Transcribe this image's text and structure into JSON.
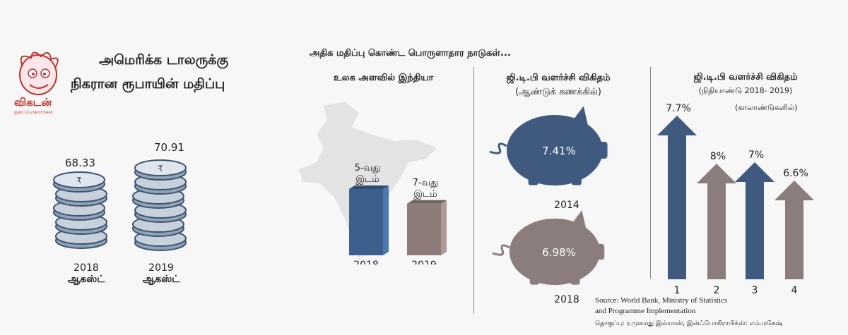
{
  "logo": {
    "name": "விகடன்",
    "tagline": "இன்ஃபோகிராபிக்ஸ்"
  },
  "title": {
    "line1": "அமெரிக்க டாலருக்கு",
    "line2": "நிகரான ரூபாயின் மதிப்பு"
  },
  "coins": {
    "items": [
      {
        "value": "68.33",
        "year": "2018",
        "month": "ஆகஸ்ட்"
      },
      {
        "value": "70.91",
        "year": "2019",
        "month": "ஆகஸ்ட்"
      }
    ]
  },
  "section_header": "அதிக மதிப்பு கொண்ட பொருளாதார நாடுகள்...",
  "rank_panel": {
    "heading": "உலக அளவில் இந்தியா"
  },
  "pig_panel": {
    "heading1": "ஜி.டி.பி வளர்ச்சி விகிதம்",
    "heading2": "(ஆண்டுக் கணக்கில்)"
  },
  "arrow_panel": {
    "heading1": "ஜி.டி.பி வளர்ச்சி விகிதம்",
    "heading2": "(நிதியாண்டு 2018- 2019)",
    "heading3": "(காலாண்டுகளில்)"
  },
  "chart_data": [
    {
      "type": "bar",
      "categories": [
        "2018",
        "2019"
      ],
      "values": [
        5,
        7
      ],
      "labels": [
        [
          "5-வது",
          "இடம்"
        ],
        [
          "7-வது",
          "இடம்"
        ]
      ],
      "colors": [
        "#3d5f8c",
        "#8c7b77"
      ]
    },
    {
      "type": "bar",
      "categories": [
        "2014",
        "2018"
      ],
      "values": [
        7.41,
        6.98
      ],
      "labels": [
        "7.41%",
        "6.98%"
      ],
      "colors": [
        "#3f5a7e",
        "#8a7d7b"
      ]
    },
    {
      "type": "bar",
      "categories": [
        "1",
        "2",
        "3",
        "4"
      ],
      "values": [
        7.7,
        8,
        7,
        6.6
      ],
      "labels": [
        "7.7%",
        "8%",
        "7%",
        "6.6%"
      ],
      "colors": [
        "#3f5a7e",
        "#8a7d7b",
        "#3f5a7e",
        "#8a7d7b"
      ]
    }
  ],
  "source": {
    "line1": "Source: World Bank, Ministry of Statistics",
    "line2": "and Programme Implementation",
    "credit": "தொகுப்பு: ர.முகமது இல்யாஸ், இன்ஃபோகிராபிக்ஸ்: எம்.மகேஷ்"
  }
}
